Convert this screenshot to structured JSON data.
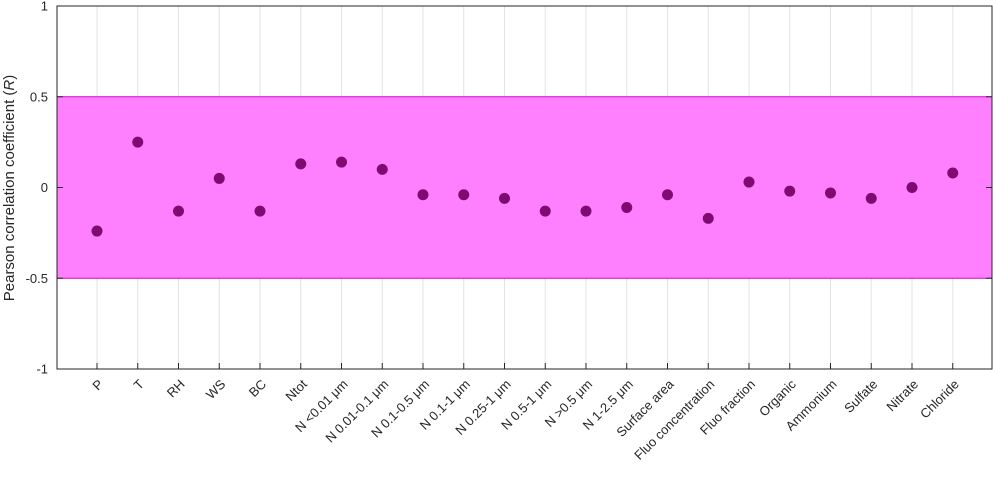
{
  "chart_data": {
    "type": "scatter",
    "title": "",
    "xlabel": "",
    "ylabel": "Pearson correlation coefficient (R)",
    "ylabel_main": "Pearson correlation coefficient (",
    "ylabel_symbol": "R",
    "ylabel_close": ")",
    "ylim": [
      -1,
      1
    ],
    "yticks": [
      "-1",
      "-0.5",
      "0",
      "0.5",
      "1"
    ],
    "grid": "vertical",
    "band": {
      "min": -0.5,
      "max": 0.5,
      "color": "#ff80ff",
      "edge_color": "#d400d4"
    },
    "marker_color": "#7e0a72",
    "categories": [
      "P",
      "T",
      "RH",
      "WS",
      "BC",
      "Ntot",
      "N <0.01 μm",
      "N 0.01-0.1 μm",
      "N 0.1-0.5 μm",
      "N 0.1-1 μm",
      "N 0.25-1 μm",
      "N 0.5-1 μm",
      "N >0.5 μm",
      "N 1-2.5 μm",
      "Surface area",
      "Fluo concentration",
      "Fluo fraction",
      "Organic",
      "Ammonium",
      "Sulfate",
      "Nitrate",
      "Chloride"
    ],
    "values": [
      -0.24,
      0.25,
      -0.13,
      0.05,
      -0.13,
      0.13,
      0.14,
      0.1,
      -0.04,
      -0.04,
      -0.06,
      -0.13,
      -0.13,
      -0.11,
      -0.04,
      -0.17,
      0.03,
      -0.02,
      -0.03,
      -0.06,
      0.0,
      0.08
    ]
  }
}
